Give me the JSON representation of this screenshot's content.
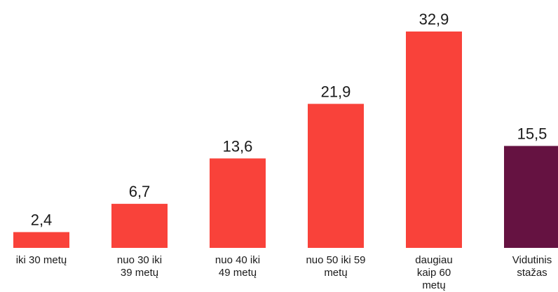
{
  "chart_data": {
    "type": "bar",
    "categories": [
      [
        "iki 30 metų"
      ],
      [
        "nuo 30 iki",
        "39 metų"
      ],
      [
        "nuo 40 iki",
        "49 metų"
      ],
      [
        "nuo 50 iki 59",
        "metų"
      ],
      [
        "daugiau",
        "kaip 60",
        "metų"
      ],
      [
        "Vidutinis",
        "stažas"
      ]
    ],
    "values": [
      2.4,
      6.7,
      13.6,
      21.9,
      32.9,
      15.5
    ],
    "value_labels": [
      "2,4",
      "6,7",
      "13,6",
      "21,9",
      "32,9",
      "15,5"
    ],
    "colors": [
      "#f9423a",
      "#f9423a",
      "#f9423a",
      "#f9423a",
      "#f9423a",
      "#651241"
    ],
    "title": "",
    "xlabel": "",
    "ylabel": "",
    "ylim": [
      0,
      32.9
    ],
    "grid": false,
    "legend": "none"
  }
}
